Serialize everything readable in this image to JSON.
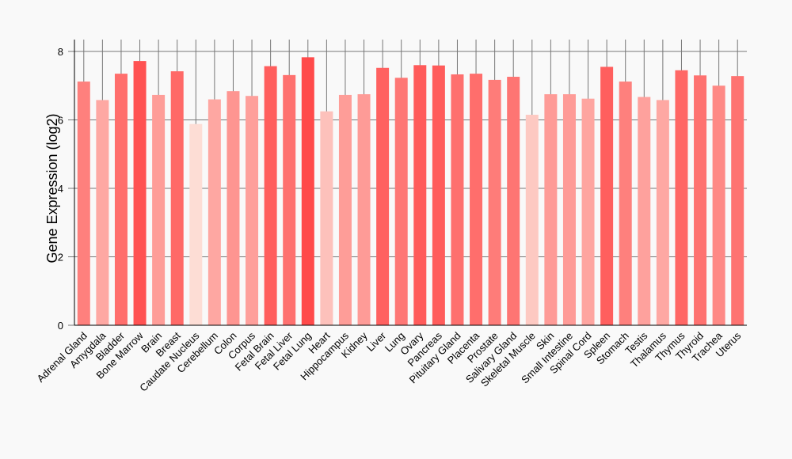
{
  "chart_data": {
    "type": "bar",
    "title": "",
    "xlabel": "",
    "ylabel": "Gene Expression (log2)",
    "ylim": [
      0,
      8.3
    ],
    "yticks": [
      0,
      2,
      4,
      6,
      8
    ],
    "grid": true,
    "categories": [
      "Adrenal Gland",
      "Amygdala",
      "Bladder",
      "Bone Marrow",
      "Brain",
      "Breast",
      "Caudate Nucleus",
      "Cerebellum",
      "Colon",
      "Corpus",
      "Fetal Brain",
      "Fetal Liver",
      "Fetal Lung",
      "Heart",
      "Hippocampus",
      "Kidney",
      "Liver",
      "Lung",
      "Ovary",
      "Pancreas",
      "Pituitary Gland",
      "Placenta",
      "Prostate",
      "Salivary Gland",
      "Skeletal Muscle",
      "Skin",
      "Small Intestine",
      "Spinal Cord",
      "Spleen",
      "Stomach",
      "Testis",
      "Thalamus",
      "Thymus",
      "Thyroid",
      "Trachea",
      "Uterus"
    ],
    "values": [
      7.12,
      6.58,
      7.35,
      7.72,
      6.73,
      7.42,
      5.88,
      6.6,
      6.84,
      6.7,
      7.57,
      7.31,
      7.83,
      6.25,
      6.73,
      6.75,
      7.52,
      7.23,
      7.6,
      7.59,
      7.33,
      7.35,
      7.17,
      7.26,
      6.15,
      6.75,
      6.75,
      6.62,
      7.55,
      7.12,
      6.67,
      6.58,
      7.45,
      7.3,
      7.0,
      7.28
    ],
    "colors": {
      "low": "#fdddd5",
      "high": "#ff4a4a",
      "grid": "#777777",
      "axis": "#000000"
    }
  }
}
